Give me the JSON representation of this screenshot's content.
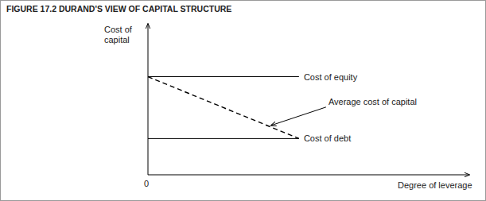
{
  "chart_data": {
    "type": "line",
    "title": "FIGURE 17.2 DURAND'S VIEW OF CAPITAL STRUCTURE",
    "ylabel": "Cost of capital",
    "xlabel": "Degree of leverage",
    "x": [
      0,
      47
    ],
    "series": [
      {
        "name": "Cost of equity",
        "color": "#000000",
        "line_style": "solid",
        "values": [
          65,
          65
        ]
      },
      {
        "name": "Average cost of capital",
        "color": "#000000",
        "line_style": "dashed",
        "values": [
          65,
          24
        ]
      },
      {
        "name": "Cost of debt",
        "color": "#000000",
        "line_style": "solid",
        "values": [
          24,
          24
        ]
      }
    ],
    "xlim": [
      0,
      100
    ],
    "ylim": [
      0,
      100
    ],
    "xticks": [
      0
    ],
    "tick_labels": "x",
    "grid": false
  }
}
